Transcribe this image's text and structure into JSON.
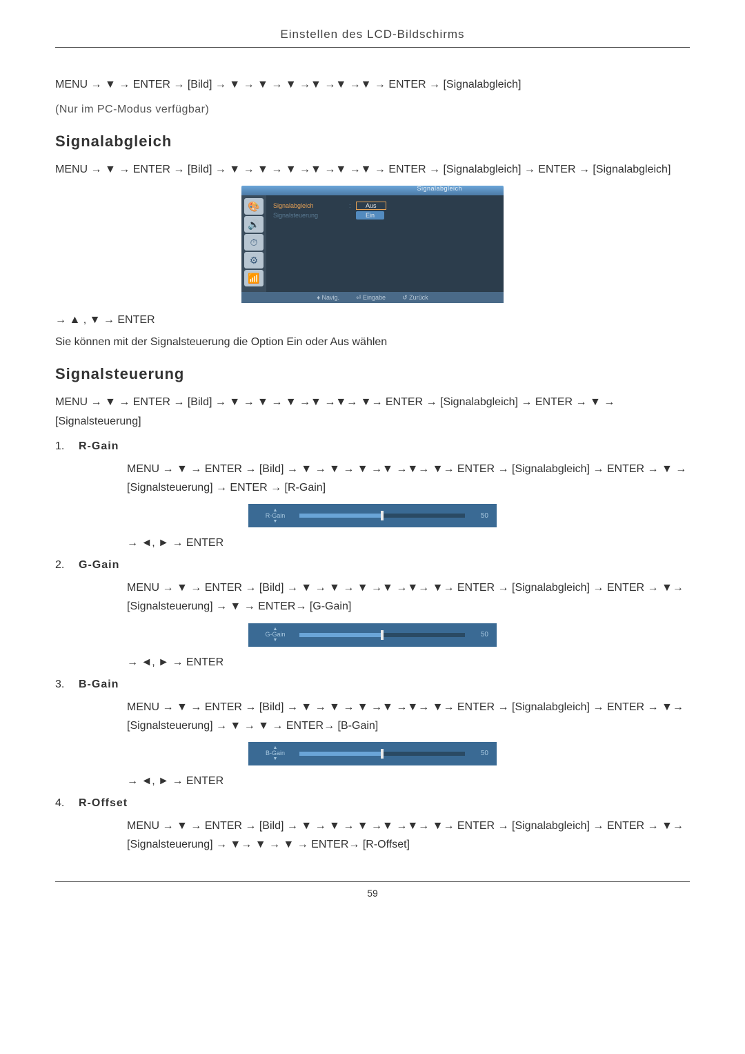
{
  "page": {
    "header": "Einstellen des LCD-Bildschirms",
    "number": "59"
  },
  "intro": {
    "path": "MENU → ▼ → ENTER → [Bild] → ▼ → ▼ → ▼ →▼ →▼ →▼ → ENTER → [Signalabgleich]",
    "note": "(Nur im PC-Modus verfügbar)"
  },
  "section1": {
    "heading": "Signalabgleich",
    "path1": "MENU → ▼ → ENTER → [Bild] → ▼ → ▼ → ▼ →▼ →▼ →▼ → ENTER → [Signalabgleich] → ENTER → [Signalabgleich]",
    "arrowLine": "→ ▲ , ▼ → ENTER",
    "desc": "Sie können mit der Signalsteuerung die Option Ein oder Aus wählen"
  },
  "osd": {
    "topLabel": "Signalabgleich",
    "rows": [
      {
        "label": "Signalabgleich",
        "val": "Aus",
        "style": "box"
      },
      {
        "label": "Signalsteuerung",
        "val": "Ein",
        "style": "hl",
        "dim": true
      }
    ],
    "footer": {
      "nav": "♦ Navig.",
      "enter": "⏎ Eingabe",
      "back": "↺ Zurück"
    },
    "icons": [
      "🎨",
      "🔊",
      "⏱",
      "⚙",
      "📶"
    ]
  },
  "section2": {
    "heading": "Signalsteuerung",
    "path": "MENU → ▼ → ENTER → [Bild] → ▼ → ▼ → ▼ →▼ →▼→ ▼→ ENTER → [Signalabgleich] → ENTER → ▼ → [Signalsteuerung]"
  },
  "items": [
    {
      "num": "1.",
      "title": "R-Gain",
      "path": "MENU → ▼ → ENTER → [Bild] → ▼ → ▼ → ▼ →▼ →▼→ ▼→ ENTER → [Signalabgleich] → ENTER → ▼ → [Signalsteuerung] → ENTER → [R-Gain]",
      "slider": {
        "label": "R-Gain",
        "value": "50",
        "percent": 50
      },
      "arrowLine": "→ ◄, ► → ENTER"
    },
    {
      "num": "2.",
      "title": "G-Gain",
      "path": "MENU → ▼ → ENTER → [Bild] → ▼ → ▼ → ▼ →▼ →▼→ ▼→ ENTER → [Signalabgleich] → ENTER → ▼→ [Signalsteuerung] → ▼ → ENTER→ [G-Gain]",
      "slider": {
        "label": "G-Gain",
        "value": "50",
        "percent": 50
      },
      "arrowLine": "→ ◄, ► → ENTER"
    },
    {
      "num": "3.",
      "title": "B-Gain",
      "path": "MENU → ▼ → ENTER → [Bild] → ▼ → ▼ → ▼ →▼ →▼→ ▼→ ENTER → [Signalabgleich] → ENTER → ▼→ [Signalsteuerung] → ▼ → ▼ → ENTER→ [B-Gain]",
      "slider": {
        "label": "B-Gain",
        "value": "50",
        "percent": 50
      },
      "arrowLine": "→ ◄, ► → ENTER"
    },
    {
      "num": "4.",
      "title": "R-Offset",
      "path": "MENU → ▼ → ENTER → [Bild] → ▼ → ▼ → ▼ →▼ →▼→ ▼→ ENTER → [Signalabgleich] → ENTER → ▼→ [Signalsteuerung] → ▼→ ▼ → ▼ → ENTER→ [R-Offset]"
    }
  ],
  "colors": {
    "osdBg": "#2c3d4c",
    "osdAccent": "#e8a255",
    "osdBlue": "#538bbf",
    "sliderBg": "#3a6a94"
  }
}
